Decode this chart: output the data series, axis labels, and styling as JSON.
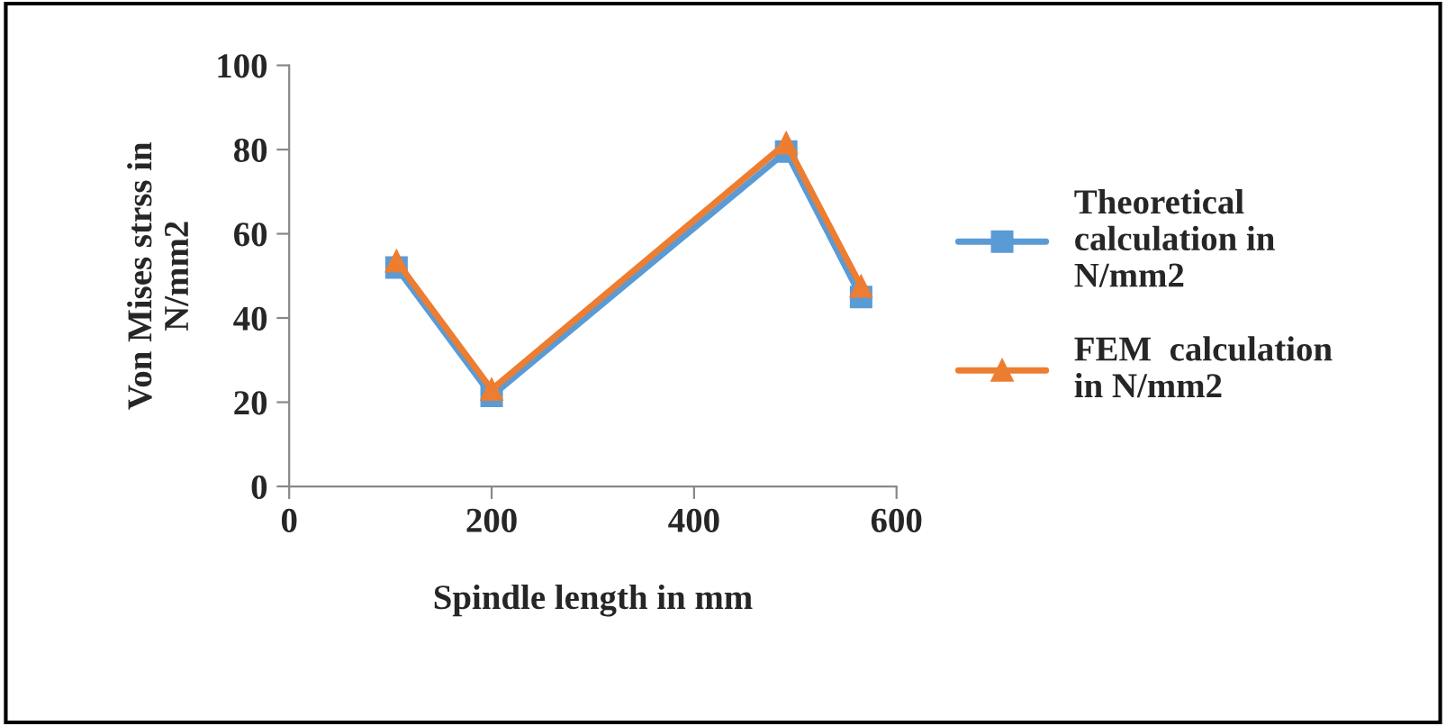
{
  "chart_data": {
    "type": "line",
    "xlabel": "Spindle length in mm",
    "ylabel": "Von Mises strss in\nN/mm2",
    "xlim": [
      0,
      600
    ],
    "xticks": [
      0,
      200,
      400,
      600
    ],
    "ylim": [
      0,
      100
    ],
    "yticks": [
      0,
      20,
      40,
      60,
      80,
      100
    ],
    "grid": false,
    "legend": "right",
    "line_style": "solid",
    "series": [
      {
        "name": "Theoretical\ncalculation in\nN/mm2",
        "color": "#5b9bd5",
        "marker": "square",
        "x": [
          106,
          200,
          491,
          565
        ],
        "values": [
          52,
          21.5,
          79.5,
          45
        ]
      },
      {
        "name": "FEM  calculation\nin N/mm2",
        "color": "#ed7d31",
        "marker": "triangle",
        "x": [
          106,
          200,
          491,
          565
        ],
        "values": [
          53.5,
          23,
          81.5,
          47.5
        ]
      }
    ]
  }
}
